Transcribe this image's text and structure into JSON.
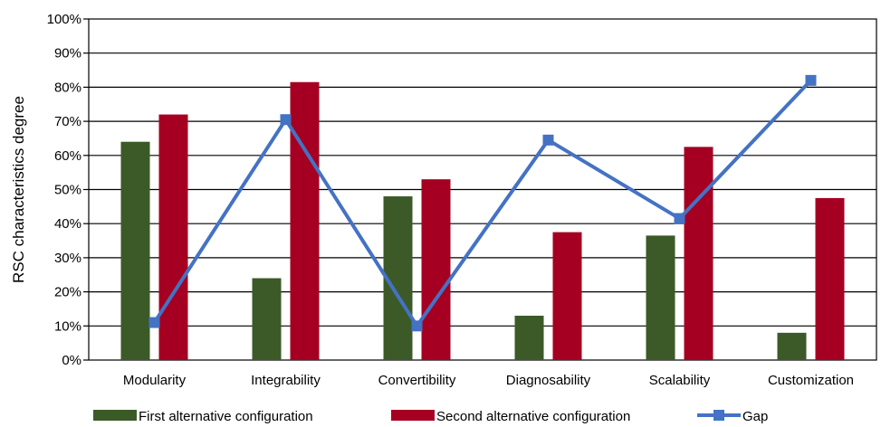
{
  "chart_data": {
    "type": "bar",
    "categories": [
      "Modularity",
      "Integrability",
      "Convertibility",
      "Diagnosability",
      "Scalability",
      "Customization"
    ],
    "series": [
      {
        "name": "First alternative configuration",
        "type": "bar",
        "color": "#3b5a27",
        "values": [
          64,
          24,
          48,
          13,
          36.5,
          8
        ]
      },
      {
        "name": "Second alternative configuration",
        "type": "bar",
        "color": "#a50021",
        "values": [
          72,
          81.5,
          53,
          37.5,
          62.5,
          47.5
        ]
      },
      {
        "name": "Gap",
        "type": "line",
        "marker": "square",
        "color": "#4472c4",
        "values": [
          11,
          70.5,
          10,
          64.5,
          41.5,
          82
        ]
      }
    ],
    "title": "",
    "xlabel": "",
    "ylabel": "RSC characteristics degree",
    "ylim": [
      0,
      100
    ],
    "yticks": [
      "0%",
      "10%",
      "20%",
      "30%",
      "40%",
      "50%",
      "60%",
      "70%",
      "80%",
      "90%",
      "100%"
    ],
    "grid": true,
    "legend_position": "bottom"
  }
}
